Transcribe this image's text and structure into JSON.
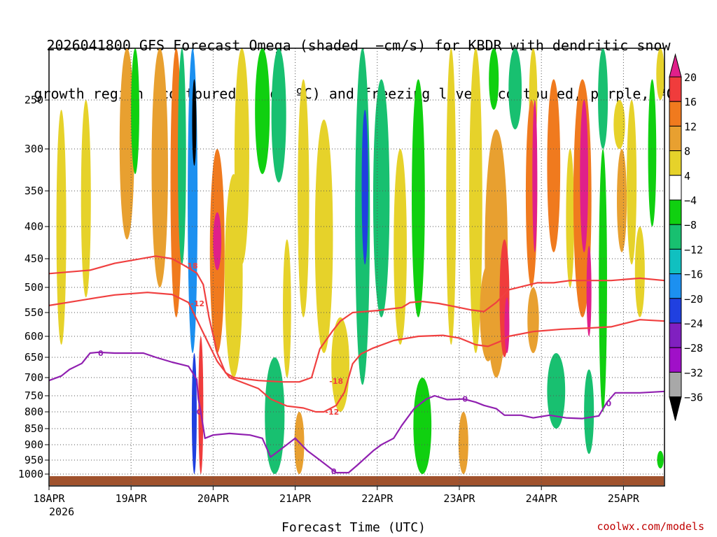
{
  "chart_data": {
    "type": "heatmap",
    "title_lines": [
      "2026041800 GFS Forecast Omega (shaded, −cm/s) for KBDR with dendritic snow",
      "growth region (contoured, red, ºC) and freezing level (contoured, purple, ºC)"
    ],
    "xlabel": "Forecast Time (UTC)",
    "credit": "coolwx.com/models",
    "x_ticks": [
      "18APR",
      "19APR",
      "20APR",
      "21APR",
      "22APR",
      "23APR",
      "24APR",
      "25APR"
    ],
    "x_year": "2026",
    "x_range_days": [
      0,
      7.5
    ],
    "y_axis": "pressure_hPa",
    "y_range": [
      1030,
      200
    ],
    "y_ticks": [
      250,
      300,
      350,
      400,
      450,
      500,
      550,
      600,
      650,
      700,
      750,
      800,
      850,
      900,
      950,
      1000
    ],
    "colorbar": {
      "tick_labels": [
        "20",
        "16",
        "12",
        "8",
        "4",
        "−4",
        "−8",
        "−12",
        "−16",
        "−20",
        "−24",
        "−28",
        "−32",
        "−36"
      ],
      "bins": [
        {
          "lo": 20,
          "hi": 24,
          "color": "#e0208a"
        },
        {
          "lo": 16,
          "hi": 20,
          "color": "#f03c3c"
        },
        {
          "lo": 12,
          "hi": 16,
          "color": "#f07a1e"
        },
        {
          "lo": 8,
          "hi": 12,
          "color": "#e8a030"
        },
        {
          "lo": 4,
          "hi": 8,
          "color": "#e6d22a"
        },
        {
          "lo": -4,
          "hi": 4,
          "color": "#ffffff"
        },
        {
          "lo": -8,
          "hi": -4,
          "color": "#10d010"
        },
        {
          "lo": -12,
          "hi": -8,
          "color": "#18c070"
        },
        {
          "lo": -16,
          "hi": -12,
          "color": "#10c0c0"
        },
        {
          "lo": -20,
          "hi": -16,
          "color": "#1c90f0"
        },
        {
          "lo": -24,
          "hi": -20,
          "color": "#2040e0"
        },
        {
          "lo": -28,
          "hi": -24,
          "color": "#8020c0"
        },
        {
          "lo": -32,
          "hi": -28,
          "color": "#a010c8"
        },
        {
          "lo": -36,
          "hi": -32,
          "color": "#a8a8a8"
        },
        {
          "lo": -40,
          "hi": -36,
          "color": "#000000"
        }
      ]
    },
    "omega_patches": [
      {
        "day": 0.15,
        "p_top": 260,
        "p_bot": 620,
        "w": 0.12,
        "v": 6
      },
      {
        "day": 0.45,
        "p_top": 250,
        "p_bot": 520,
        "w": 0.12,
        "v": 5
      },
      {
        "day": 0.95,
        "p_top": 200,
        "p_bot": 420,
        "w": 0.18,
        "v": 10
      },
      {
        "day": 1.05,
        "p_top": 200,
        "p_bot": 330,
        "w": 0.1,
        "v": -6
      },
      {
        "day": 1.35,
        "p_top": 200,
        "p_bot": 500,
        "w": 0.2,
        "v": 9
      },
      {
        "day": 1.55,
        "p_top": 200,
        "p_bot": 560,
        "w": 0.14,
        "v": 13
      },
      {
        "day": 1.62,
        "p_top": 200,
        "p_bot": 460,
        "w": 0.1,
        "v": -10
      },
      {
        "day": 1.75,
        "p_top": 200,
        "p_bot": 640,
        "w": 0.12,
        "v": -18
      },
      {
        "day": 1.77,
        "p_top": 230,
        "p_bot": 320,
        "w": 0.04,
        "v": -40
      },
      {
        "day": 1.77,
        "p_top": 640,
        "p_bot": 1000,
        "w": 0.06,
        "v": -22
      },
      {
        "day": 1.85,
        "p_top": 600,
        "p_bot": 1000,
        "w": 0.06,
        "v": 16
      },
      {
        "day": 2.05,
        "p_top": 300,
        "p_bot": 640,
        "w": 0.18,
        "v": 14
      },
      {
        "day": 2.05,
        "p_top": 380,
        "p_bot": 470,
        "w": 0.1,
        "v": 22
      },
      {
        "day": 2.25,
        "p_top": 330,
        "p_bot": 700,
        "w": 0.22,
        "v": 6
      },
      {
        "day": 2.35,
        "p_top": 200,
        "p_bot": 460,
        "w": 0.18,
        "v": 7
      },
      {
        "day": 2.6,
        "p_top": 200,
        "p_bot": 330,
        "w": 0.18,
        "v": -8
      },
      {
        "day": 2.8,
        "p_top": 200,
        "p_bot": 340,
        "w": 0.18,
        "v": -10
      },
      {
        "day": 2.75,
        "p_top": 650,
        "p_bot": 1000,
        "w": 0.24,
        "v": -9
      },
      {
        "day": 2.9,
        "p_top": 420,
        "p_bot": 700,
        "w": 0.1,
        "v": 5
      },
      {
        "day": 3.05,
        "p_top": 800,
        "p_bot": 1000,
        "w": 0.12,
        "v": 10
      },
      {
        "day": 3.1,
        "p_top": 230,
        "p_bot": 560,
        "w": 0.14,
        "v": 6
      },
      {
        "day": 3.35,
        "p_top": 270,
        "p_bot": 640,
        "w": 0.22,
        "v": 5
      },
      {
        "day": 3.55,
        "p_top": 560,
        "p_bot": 800,
        "w": 0.22,
        "v": 5
      },
      {
        "day": 3.82,
        "p_top": 200,
        "p_bot": 720,
        "w": 0.18,
        "v": -9
      },
      {
        "day": 3.85,
        "p_top": 260,
        "p_bot": 460,
        "w": 0.08,
        "v": -21
      },
      {
        "day": 4.05,
        "p_top": 230,
        "p_bot": 560,
        "w": 0.2,
        "v": -9
      },
      {
        "day": 4.28,
        "p_top": 300,
        "p_bot": 620,
        "w": 0.16,
        "v": 6
      },
      {
        "day": 4.5,
        "p_top": 230,
        "p_bot": 560,
        "w": 0.16,
        "v": -7
      },
      {
        "day": 4.55,
        "p_top": 700,
        "p_bot": 1000,
        "w": 0.22,
        "v": -8
      },
      {
        "day": 4.9,
        "p_top": 200,
        "p_bot": 620,
        "w": 0.12,
        "v": 6
      },
      {
        "day": 5.05,
        "p_top": 800,
        "p_bot": 1000,
        "w": 0.12,
        "v": 9
      },
      {
        "day": 5.2,
        "p_top": 200,
        "p_bot": 640,
        "w": 0.16,
        "v": 5
      },
      {
        "day": 5.35,
        "p_top": 460,
        "p_bot": 660,
        "w": 0.2,
        "v": 10
      },
      {
        "day": 5.42,
        "p_top": 200,
        "p_bot": 260,
        "w": 0.12,
        "v": -7
      },
      {
        "day": 5.45,
        "p_top": 280,
        "p_bot": 700,
        "w": 0.28,
        "v": 10
      },
      {
        "day": 5.55,
        "p_top": 420,
        "p_bot": 650,
        "w": 0.12,
        "v": 18
      },
      {
        "day": 5.58,
        "p_top": 520,
        "p_bot": 640,
        "w": 0.06,
        "v": 21
      },
      {
        "day": 5.68,
        "p_top": 200,
        "p_bot": 280,
        "w": 0.16,
        "v": -9
      },
      {
        "day": 5.9,
        "p_top": 200,
        "p_bot": 300,
        "w": 0.1,
        "v": 7
      },
      {
        "day": 5.88,
        "p_top": 250,
        "p_bot": 500,
        "w": 0.14,
        "v": 15
      },
      {
        "day": 5.92,
        "p_top": 250,
        "p_bot": 440,
        "w": 0.06,
        "v": 21
      },
      {
        "day": 5.9,
        "p_top": 500,
        "p_bot": 640,
        "w": 0.14,
        "v": 11
      },
      {
        "day": 6.15,
        "p_top": 230,
        "p_bot": 440,
        "w": 0.16,
        "v": 13
      },
      {
        "day": 6.18,
        "p_top": 640,
        "p_bot": 850,
        "w": 0.22,
        "v": -9
      },
      {
        "day": 6.35,
        "p_top": 300,
        "p_bot": 500,
        "w": 0.1,
        "v": 6
      },
      {
        "day": 6.5,
        "p_top": 230,
        "p_bot": 560,
        "w": 0.22,
        "v": 14
      },
      {
        "day": 6.52,
        "p_top": 250,
        "p_bot": 440,
        "w": 0.1,
        "v": 22
      },
      {
        "day": 6.58,
        "p_top": 430,
        "p_bot": 600,
        "w": 0.06,
        "v": 21
      },
      {
        "day": 6.58,
        "p_top": 680,
        "p_bot": 930,
        "w": 0.12,
        "v": -9
      },
      {
        "day": 6.75,
        "p_top": 200,
        "p_bot": 300,
        "w": 0.12,
        "v": -9
      },
      {
        "day": 6.75,
        "p_top": 300,
        "p_bot": 800,
        "w": 0.1,
        "v": -7
      },
      {
        "day": 6.95,
        "p_top": 250,
        "p_bot": 300,
        "w": 0.14,
        "v": 5
      },
      {
        "day": 6.98,
        "p_top": 300,
        "p_bot": 440,
        "w": 0.12,
        "v": 10
      },
      {
        "day": 7.1,
        "p_top": 250,
        "p_bot": 460,
        "w": 0.12,
        "v": 6
      },
      {
        "day": 7.2,
        "p_top": 400,
        "p_bot": 560,
        "w": 0.12,
        "v": 7
      },
      {
        "day": 7.35,
        "p_top": 230,
        "p_bot": 400,
        "w": 0.1,
        "v": -8
      },
      {
        "day": 7.45,
        "p_top": 200,
        "p_bot": 250,
        "w": 0.1,
        "v": 6
      },
      {
        "day": 7.45,
        "p_top": 920,
        "p_bot": 980,
        "w": 0.08,
        "v": -8
      }
    ],
    "contours": [
      {
        "level": "-18",
        "color": "#f04040",
        "points": [
          [
            0,
            476
          ],
          [
            0.5,
            470
          ],
          [
            0.8,
            458
          ],
          [
            1.3,
            446
          ],
          [
            1.5,
            450
          ],
          [
            1.65,
            462
          ],
          [
            1.8,
            475
          ],
          [
            1.88,
            495
          ],
          [
            1.95,
            560
          ],
          [
            2.05,
            640
          ],
          [
            2.15,
            688
          ],
          [
            2.25,
            700
          ],
          [
            2.55,
            708
          ],
          [
            2.85,
            712
          ],
          [
            3.05,
            712
          ],
          [
            3.2,
            700
          ],
          [
            3.3,
            630
          ],
          [
            3.45,
            590
          ],
          [
            3.55,
            568
          ],
          [
            3.7,
            550
          ],
          [
            4.0,
            546
          ],
          [
            4.3,
            540
          ],
          [
            4.4,
            530
          ],
          [
            4.55,
            528
          ],
          [
            4.75,
            532
          ],
          [
            5.0,
            540
          ],
          [
            5.15,
            545
          ],
          [
            5.3,
            548
          ],
          [
            5.45,
            530
          ],
          [
            5.6,
            505
          ],
          [
            5.95,
            492
          ],
          [
            6.15,
            492
          ],
          [
            6.35,
            488
          ],
          [
            6.55,
            488
          ],
          [
            6.85,
            488
          ],
          [
            7.2,
            484
          ],
          [
            7.5,
            488
          ]
        ],
        "labels": [
          [
            1.73,
            462
          ],
          [
            3.5,
            710
          ]
        ]
      },
      {
        "level": "-12",
        "color": "#f04040",
        "points": [
          [
            0,
            536
          ],
          [
            0.3,
            528
          ],
          [
            0.6,
            520
          ],
          [
            0.8,
            515
          ],
          [
            1.2,
            510
          ],
          [
            1.5,
            514
          ],
          [
            1.7,
            530
          ],
          [
            1.9,
            600
          ],
          [
            2.05,
            660
          ],
          [
            2.2,
            700
          ],
          [
            2.55,
            730
          ],
          [
            2.7,
            760
          ],
          [
            2.9,
            782
          ],
          [
            3.1,
            788
          ],
          [
            3.25,
            800
          ],
          [
            3.35,
            800
          ],
          [
            3.5,
            780
          ],
          [
            3.6,
            740
          ],
          [
            3.7,
            666
          ],
          [
            3.8,
            642
          ],
          [
            3.95,
            628
          ],
          [
            4.2,
            610
          ],
          [
            4.5,
            600
          ],
          [
            4.8,
            598
          ],
          [
            5.0,
            604
          ],
          [
            5.2,
            620
          ],
          [
            5.35,
            624
          ],
          [
            5.5,
            612
          ],
          [
            5.6,
            600
          ],
          [
            5.9,
            590
          ],
          [
            6.25,
            585
          ],
          [
            6.55,
            583
          ],
          [
            6.85,
            580
          ],
          [
            7.2,
            565
          ],
          [
            7.5,
            568
          ]
        ],
        "labels": [
          [
            1.81,
            532
          ],
          [
            3.45,
            800
          ]
        ]
      },
      {
        "level": "0",
        "color": "#9020b0",
        "points": [
          [
            0,
            708
          ],
          [
            0.15,
            696
          ],
          [
            0.25,
            680
          ],
          [
            0.4,
            665
          ],
          [
            0.5,
            640
          ],
          [
            0.6,
            638
          ],
          [
            0.8,
            640
          ],
          [
            0.95,
            640
          ],
          [
            1.15,
            640
          ],
          [
            1.3,
            650
          ],
          [
            1.5,
            662
          ],
          [
            1.7,
            672
          ],
          [
            1.8,
            705
          ],
          [
            1.82,
            760
          ],
          [
            1.85,
            800
          ],
          [
            1.9,
            880
          ],
          [
            2.0,
            870
          ],
          [
            2.2,
            865
          ],
          [
            2.45,
            870
          ],
          [
            2.6,
            880
          ],
          [
            2.7,
            940
          ],
          [
            2.8,
            920
          ],
          [
            3.0,
            880
          ],
          [
            3.15,
            920
          ],
          [
            3.3,
            950
          ],
          [
            3.5,
            995
          ],
          [
            3.65,
            995
          ],
          [
            3.75,
            970
          ],
          [
            3.95,
            920
          ],
          [
            4.05,
            900
          ],
          [
            4.2,
            880
          ],
          [
            4.3,
            840
          ],
          [
            4.45,
            790
          ],
          [
            4.6,
            760
          ],
          [
            4.7,
            750
          ],
          [
            4.85,
            762
          ],
          [
            5.05,
            760
          ],
          [
            5.2,
            770
          ],
          [
            5.3,
            780
          ],
          [
            5.45,
            790
          ],
          [
            5.55,
            810
          ],
          [
            5.75,
            810
          ],
          [
            5.9,
            818
          ],
          [
            6.1,
            810
          ],
          [
            6.3,
            818
          ],
          [
            6.5,
            820
          ],
          [
            6.7,
            812
          ],
          [
            6.8,
            770
          ],
          [
            6.9,
            742
          ],
          [
            7.05,
            742
          ],
          [
            7.2,
            742
          ],
          [
            7.5,
            738
          ]
        ],
        "labels": [
          [
            0.63,
            640
          ],
          [
            1.83,
            800
          ],
          [
            5.07,
            760
          ],
          [
            6.82,
            774
          ],
          [
            3.47,
            990
          ]
        ]
      }
    ]
  }
}
